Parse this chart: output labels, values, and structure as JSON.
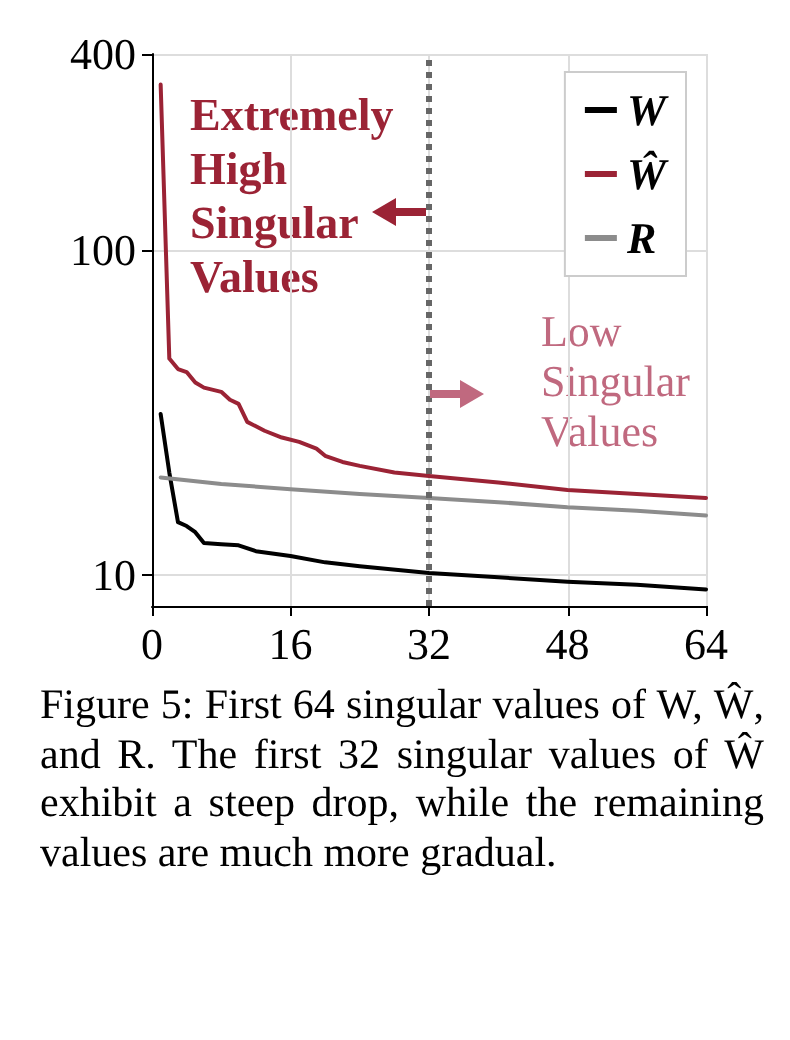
{
  "chart_data": {
    "type": "line",
    "log": "y",
    "grid": true,
    "legend": "top right",
    "marker": "none",
    "line_style": "solid",
    "xlim": [
      0,
      64
    ],
    "xticks": [
      0,
      16,
      32,
      48,
      64
    ],
    "ylim": [
      8,
      400
    ],
    "yticks": [
      10,
      100,
      400
    ],
    "series": [
      {
        "name": "W",
        "color": "#000000",
        "x": [
          1,
          2,
          3,
          4,
          5,
          6,
          8,
          10,
          12,
          16,
          20,
          24,
          32,
          40,
          48,
          56,
          64
        ],
        "values": [
          31.2,
          20.6,
          14.5,
          14.1,
          13.5,
          12.5,
          12.4,
          12.3,
          11.8,
          11.4,
          10.9,
          10.6,
          10.1,
          9.8,
          9.5,
          9.3,
          9.0
        ]
      },
      {
        "name": "Ŵ",
        "color": "#9b2335",
        "x": [
          1,
          2,
          3,
          4,
          5,
          6,
          8,
          9,
          10,
          11,
          13,
          15,
          17,
          19,
          20,
          22,
          24,
          28,
          32,
          40,
          48,
          56,
          64
        ],
        "values": [
          322,
          46.2,
          42.9,
          42,
          39,
          37.6,
          36.5,
          34.5,
          33.5,
          29.5,
          27.7,
          26.4,
          25.6,
          24.4,
          23.2,
          22.2,
          21.6,
          20.6,
          20.1,
          19.2,
          18.2,
          17.7,
          17.2
        ]
      },
      {
        "name": "R",
        "color": "#8c8c8c",
        "x": [
          1,
          8,
          16,
          24,
          32,
          40,
          48,
          56,
          64
        ],
        "values": [
          19.9,
          19.0,
          18.3,
          17.7,
          17.2,
          16.7,
          16.1,
          15.7,
          15.2
        ]
      }
    ],
    "ref_lines": [
      {
        "axis": "x",
        "value": 32,
        "color": "#666666",
        "line_style": "dotted"
      }
    ],
    "annotations": [
      "Extremely High Singular Values",
      "Low Singular Values",
      "Figure 5: First 64 singular values of W, Ŵ, and R. The first 32 singular values of Ŵ exhibit a steep drop, while the remaining values are much more gradual."
    ]
  }
}
